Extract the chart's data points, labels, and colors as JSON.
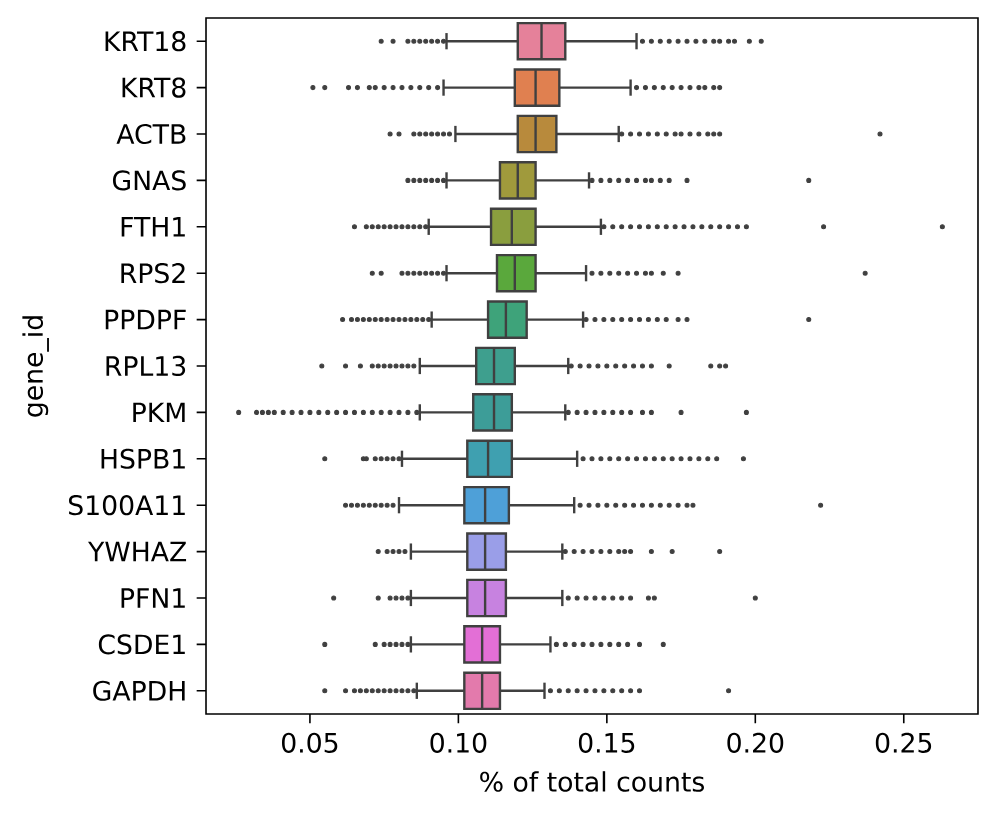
{
  "chart_data": {
    "type": "box",
    "orientation": "horizontal",
    "xlabel": "% of total counts",
    "ylabel": "gene_id",
    "categories": [
      "KRT18",
      "KRT8",
      "ACTB",
      "GNAS",
      "FTH1",
      "RPS2",
      "PPDPF",
      "RPL13",
      "PKM",
      "HSPB1",
      "S100A11",
      "YWHAZ",
      "PFN1",
      "CSDE1",
      "GAPDH"
    ],
    "colors": [
      "#e5819a",
      "#e08050",
      "#b88a3c",
      "#a09a3c",
      "#8a9e3e",
      "#5aa83c",
      "#3ea37a",
      "#3e9f8e",
      "#3d9d98",
      "#3fa0b0",
      "#4ea0d8",
      "#9a9ee8",
      "#c782e0",
      "#e36fd6",
      "#e37aac"
    ],
    "xlim": [
      0.015,
      0.275
    ],
    "xticks": [
      0.05,
      {
        "value": 0.1,
        "label": "0.10"
      },
      0.15,
      {
        "value": 0.2,
        "label": "0.20"
      },
      0.25
    ],
    "boxes": [
      {
        "low": 0.096,
        "q1": 0.12,
        "median": 0.128,
        "q3": 0.136,
        "high": 0.16,
        "outliers": [
          0.074,
          0.078,
          0.083,
          0.085,
          0.087,
          0.089,
          0.091,
          0.093,
          0.095,
          0.162,
          0.165,
          0.168,
          0.171,
          0.174,
          0.177,
          0.18,
          0.183,
          0.186,
          0.188,
          0.191,
          0.193,
          0.198,
          0.202
        ]
      },
      {
        "low": 0.095,
        "q1": 0.119,
        "median": 0.126,
        "q3": 0.134,
        "high": 0.158,
        "outliers": [
          0.051,
          0.055,
          0.063,
          0.066,
          0.07,
          0.072,
          0.075,
          0.078,
          0.081,
          0.084,
          0.087,
          0.09,
          0.093,
          0.16,
          0.163,
          0.166,
          0.169,
          0.172,
          0.175,
          0.178,
          0.181,
          0.183,
          0.186,
          0.188
        ]
      },
      {
        "low": 0.099,
        "q1": 0.12,
        "median": 0.126,
        "q3": 0.133,
        "high": 0.154,
        "outliers": [
          0.077,
          0.08,
          0.085,
          0.087,
          0.089,
          0.091,
          0.093,
          0.095,
          0.097,
          0.155,
          0.158,
          0.161,
          0.164,
          0.167,
          0.17,
          0.173,
          0.175,
          0.178,
          0.181,
          0.184,
          0.186,
          0.188,
          0.242
        ]
      },
      {
        "low": 0.096,
        "q1": 0.114,
        "median": 0.12,
        "q3": 0.126,
        "high": 0.144,
        "outliers": [
          0.083,
          0.085,
          0.087,
          0.089,
          0.091,
          0.093,
          0.095,
          0.145,
          0.148,
          0.151,
          0.154,
          0.157,
          0.16,
          0.163,
          0.165,
          0.168,
          0.171,
          0.177,
          0.218
        ]
      },
      {
        "low": 0.09,
        "q1": 0.111,
        "median": 0.118,
        "q3": 0.126,
        "high": 0.148,
        "outliers": [
          0.065,
          0.069,
          0.071,
          0.073,
          0.075,
          0.077,
          0.079,
          0.081,
          0.083,
          0.085,
          0.087,
          0.089,
          0.149,
          0.152,
          0.155,
          0.158,
          0.161,
          0.164,
          0.167,
          0.17,
          0.173,
          0.176,
          0.179,
          0.182,
          0.185,
          0.188,
          0.191,
          0.194,
          0.197,
          0.223,
          0.263
        ]
      },
      {
        "low": 0.096,
        "q1": 0.113,
        "median": 0.119,
        "q3": 0.126,
        "high": 0.143,
        "outliers": [
          0.071,
          0.074,
          0.081,
          0.083,
          0.085,
          0.087,
          0.089,
          0.091,
          0.093,
          0.095,
          0.145,
          0.148,
          0.151,
          0.154,
          0.157,
          0.16,
          0.163,
          0.165,
          0.169,
          0.174,
          0.237
        ]
      },
      {
        "low": 0.091,
        "q1": 0.11,
        "median": 0.116,
        "q3": 0.123,
        "high": 0.142,
        "outliers": [
          0.061,
          0.064,
          0.066,
          0.068,
          0.07,
          0.072,
          0.074,
          0.076,
          0.078,
          0.08,
          0.082,
          0.084,
          0.086,
          0.088,
          0.09,
          0.143,
          0.146,
          0.149,
          0.152,
          0.155,
          0.158,
          0.161,
          0.164,
          0.167,
          0.17,
          0.174,
          0.177,
          0.218
        ]
      },
      {
        "low": 0.087,
        "q1": 0.106,
        "median": 0.112,
        "q3": 0.119,
        "high": 0.137,
        "outliers": [
          0.054,
          0.062,
          0.067,
          0.071,
          0.073,
          0.075,
          0.077,
          0.079,
          0.081,
          0.083,
          0.085,
          0.138,
          0.141,
          0.144,
          0.147,
          0.15,
          0.153,
          0.156,
          0.159,
          0.162,
          0.165,
          0.171,
          0.185,
          0.188,
          0.19
        ]
      },
      {
        "low": 0.087,
        "q1": 0.105,
        "median": 0.112,
        "q3": 0.118,
        "high": 0.136,
        "outliers": [
          0.026,
          0.032,
          0.034,
          0.036,
          0.038,
          0.041,
          0.044,
          0.047,
          0.05,
          0.053,
          0.056,
          0.059,
          0.062,
          0.065,
          0.068,
          0.071,
          0.074,
          0.077,
          0.08,
          0.083,
          0.086,
          0.137,
          0.14,
          0.143,
          0.146,
          0.149,
          0.152,
          0.155,
          0.158,
          0.162,
          0.165,
          0.175,
          0.197
        ]
      },
      {
        "low": 0.081,
        "q1": 0.103,
        "median": 0.11,
        "q3": 0.118,
        "high": 0.14,
        "outliers": [
          0.055,
          0.068,
          0.069,
          0.072,
          0.074,
          0.076,
          0.078,
          0.08,
          0.142,
          0.145,
          0.148,
          0.151,
          0.154,
          0.157,
          0.16,
          0.163,
          0.166,
          0.169,
          0.172,
          0.175,
          0.178,
          0.181,
          0.184,
          0.187,
          0.196
        ]
      },
      {
        "low": 0.08,
        "q1": 0.102,
        "median": 0.109,
        "q3": 0.117,
        "high": 0.139,
        "outliers": [
          0.062,
          0.064,
          0.066,
          0.068,
          0.07,
          0.072,
          0.074,
          0.076,
          0.078,
          0.141,
          0.144,
          0.147,
          0.15,
          0.153,
          0.156,
          0.159,
          0.162,
          0.165,
          0.168,
          0.171,
          0.174,
          0.177,
          0.179,
          0.222
        ]
      },
      {
        "low": 0.084,
        "q1": 0.103,
        "median": 0.109,
        "q3": 0.116,
        "high": 0.135,
        "outliers": [
          0.073,
          0.076,
          0.078,
          0.08,
          0.082,
          0.136,
          0.139,
          0.142,
          0.145,
          0.148,
          0.151,
          0.154,
          0.156,
          0.158,
          0.165,
          0.172,
          0.188
        ]
      },
      {
        "low": 0.084,
        "q1": 0.103,
        "median": 0.109,
        "q3": 0.116,
        "high": 0.135,
        "outliers": [
          0.058,
          0.073,
          0.077,
          0.079,
          0.081,
          0.083,
          0.137,
          0.14,
          0.143,
          0.146,
          0.149,
          0.152,
          0.155,
          0.158,
          0.164,
          0.166,
          0.2
        ]
      },
      {
        "low": 0.084,
        "q1": 0.102,
        "median": 0.108,
        "q3": 0.114,
        "high": 0.131,
        "outliers": [
          0.055,
          0.072,
          0.075,
          0.077,
          0.079,
          0.081,
          0.083,
          0.133,
          0.136,
          0.139,
          0.142,
          0.145,
          0.148,
          0.151,
          0.154,
          0.157,
          0.161,
          0.169
        ]
      },
      {
        "low": 0.086,
        "q1": 0.102,
        "median": 0.108,
        "q3": 0.114,
        "high": 0.129,
        "outliers": [
          0.055,
          0.062,
          0.065,
          0.067,
          0.069,
          0.071,
          0.073,
          0.075,
          0.077,
          0.079,
          0.081,
          0.083,
          0.085,
          0.131,
          0.134,
          0.137,
          0.14,
          0.143,
          0.146,
          0.149,
          0.152,
          0.155,
          0.158,
          0.161,
          0.191
        ]
      }
    ]
  }
}
